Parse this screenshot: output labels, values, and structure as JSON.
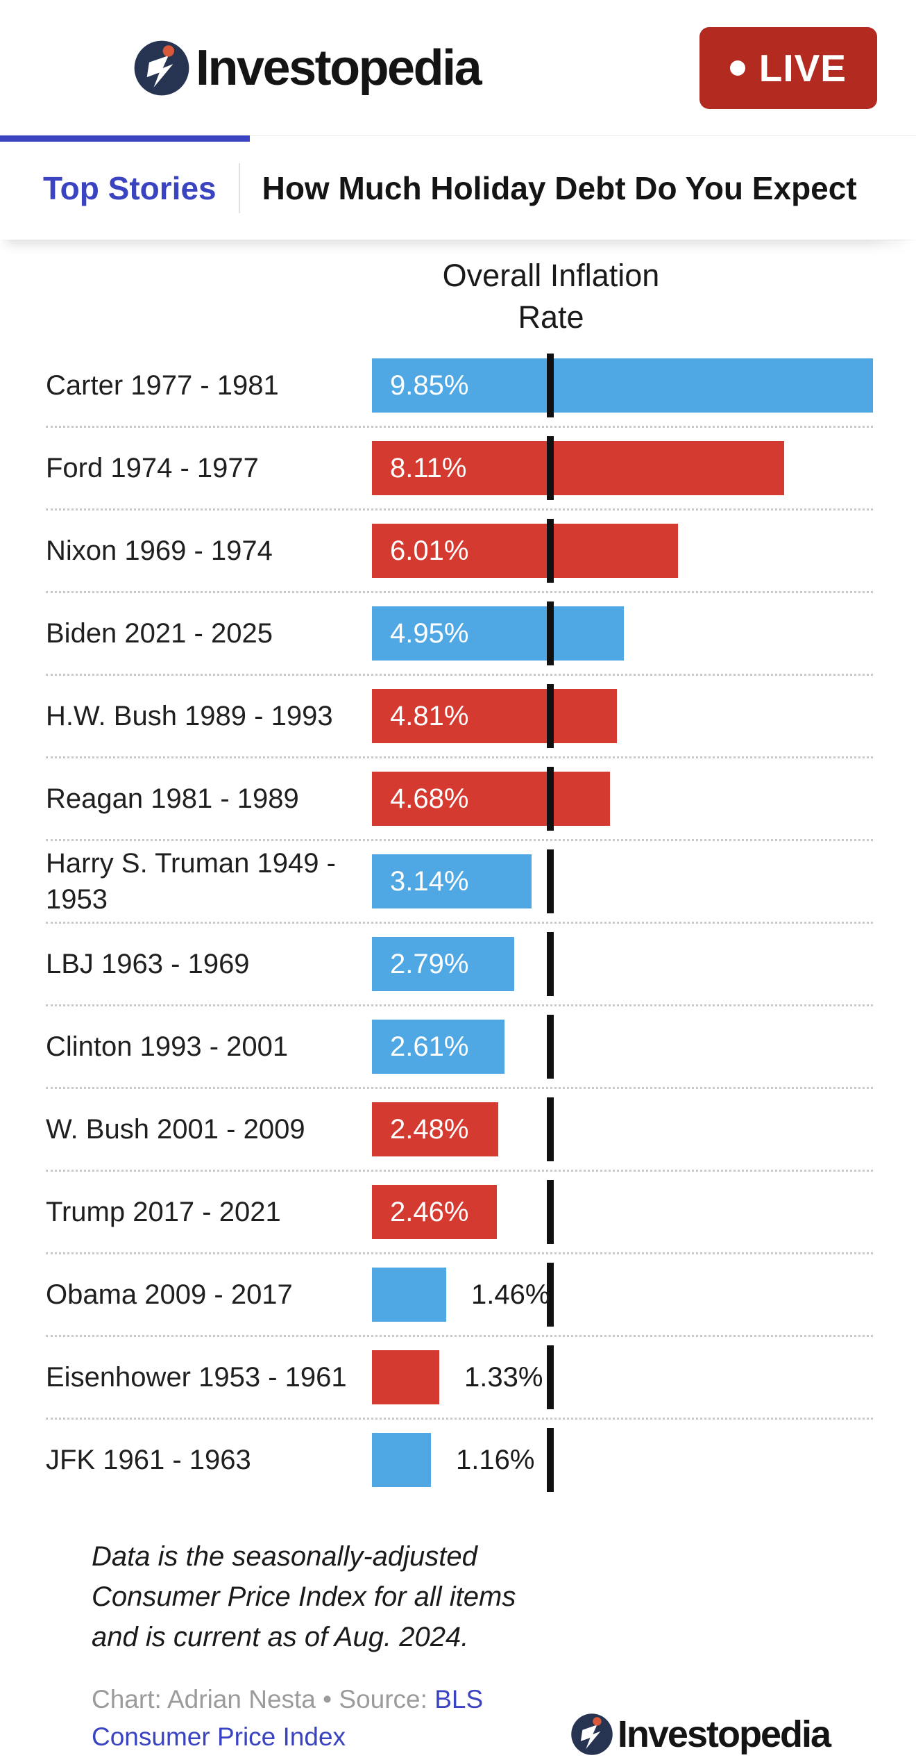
{
  "header": {
    "brand": "Investopedia",
    "live_label": "LIVE"
  },
  "tabbar": {
    "active_tab": "Top Stories",
    "headline": "How Much Holiday Debt Do You Expect"
  },
  "chart_data": {
    "type": "bar",
    "orientation": "horizontal",
    "title": "Overall Inflation Rate",
    "value_suffix": "%",
    "xlim": [
      0,
      9.85
    ],
    "grid": false,
    "legend": "none",
    "reference_line": {
      "value": 3.5,
      "color": "#111111"
    },
    "bar_colors": {
      "blue": "#4FA8E3",
      "red": "#D43A30"
    },
    "rows": [
      {
        "label": "Carter 1977 - 1981",
        "value": 9.85,
        "display": "9.85%",
        "color": "blue"
      },
      {
        "label": "Ford 1974 - 1977",
        "value": 8.11,
        "display": "8.11%",
        "color": "red"
      },
      {
        "label": "Nixon 1969 - 1974",
        "value": 6.01,
        "display": "6.01%",
        "color": "red"
      },
      {
        "label": "Biden 2021 - 2025",
        "value": 4.95,
        "display": "4.95%",
        "color": "blue"
      },
      {
        "label": "H.W. Bush 1989 - 1993",
        "value": 4.81,
        "display": "4.81%",
        "color": "red"
      },
      {
        "label": "Reagan 1981 - 1989",
        "value": 4.68,
        "display": "4.68%",
        "color": "red"
      },
      {
        "label": "Harry S. Truman 1949 - 1953",
        "value": 3.14,
        "display": "3.14%",
        "color": "blue"
      },
      {
        "label": "LBJ 1963 - 1969",
        "value": 2.79,
        "display": "2.79%",
        "color": "blue"
      },
      {
        "label": "Clinton 1993 - 2001",
        "value": 2.61,
        "display": "2.61%",
        "color": "blue"
      },
      {
        "label": "W. Bush 2001 - 2009",
        "value": 2.48,
        "display": "2.48%",
        "color": "red"
      },
      {
        "label": "Trump 2017 - 2021",
        "value": 2.46,
        "display": "2.46%",
        "color": "red"
      },
      {
        "label": "Obama 2009 - 2017",
        "value": 1.46,
        "display": "1.46%",
        "color": "blue"
      },
      {
        "label": "Eisenhower 1953 - 1961",
        "value": 1.33,
        "display": "1.33%",
        "color": "red"
      },
      {
        "label": "JFK 1961 - 1963",
        "value": 1.16,
        "display": "1.16%",
        "color": "blue"
      }
    ]
  },
  "footnote": "Data is the seasonally-adjusted Consumer Price Index for all items and is current as of Aug. 2024.",
  "credits": {
    "prefix": "Chart: Adrian Nesta • Source:",
    "link_text": "BLS Consumer Price Index"
  },
  "footer": {
    "brand": "Investopedia"
  },
  "colors": {
    "accent_blue": "#3A43C0",
    "live_red": "#B22A20",
    "icon_navy": "#263451",
    "icon_orange": "#D9593B"
  }
}
